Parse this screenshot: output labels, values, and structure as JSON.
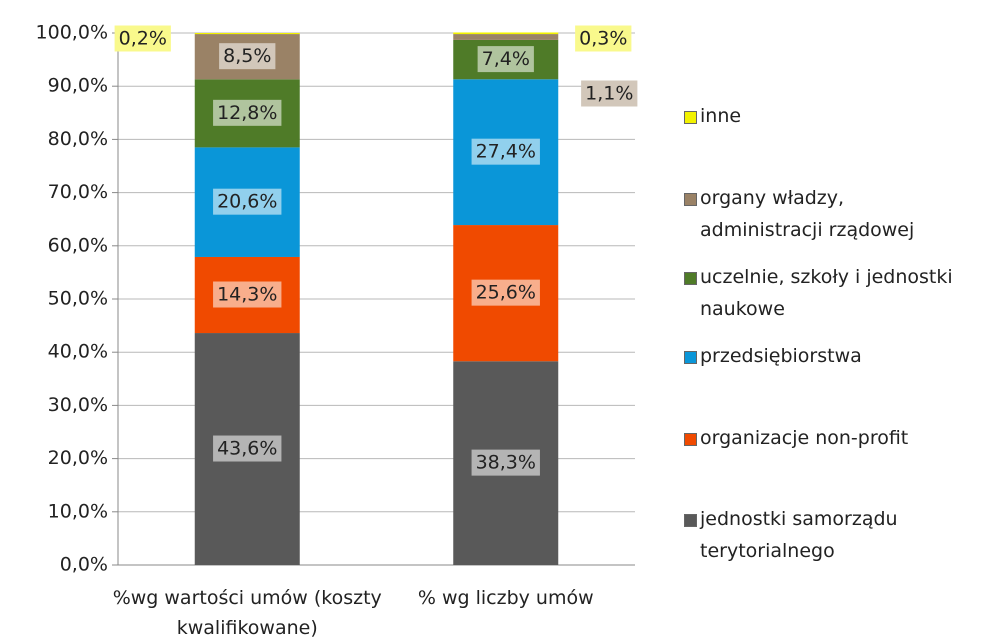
{
  "chart_data": {
    "type": "stacked_bar",
    "categories": [
      "%wg wartości umów (koszty kwalifikowane)",
      "% wg liczby umów"
    ],
    "series": [
      {
        "name": "jednostki samorządu terytorialnego",
        "color": "#595959",
        "values": [
          43.6,
          38.3
        ],
        "value_labels": [
          "43,6%",
          "38,3%"
        ]
      },
      {
        "name": "organizacje non-profit",
        "color": "#f04a00",
        "values": [
          14.3,
          25.6
        ],
        "value_labels": [
          "14,3%",
          "25,6%"
        ]
      },
      {
        "name": "przedsiębiorstwa",
        "color": "#0a96d8",
        "values": [
          20.6,
          27.4
        ],
        "value_labels": [
          "20,6%",
          "27,4%"
        ]
      },
      {
        "name": "uczelnie, szkoły i jednostki naukowe",
        "color": "#4f7b28",
        "values": [
          12.8,
          7.4
        ],
        "value_labels": [
          "12,8%",
          "7,4%"
        ]
      },
      {
        "name": "organy władzy, administracji rządowej",
        "color": "#9a8266",
        "values": [
          8.5,
          1.1
        ],
        "value_labels": [
          "8,5%",
          "1,1%"
        ]
      },
      {
        "name": "inne",
        "color": "#f2f200",
        "values": [
          0.2,
          0.3
        ],
        "value_labels": [
          "0,2%",
          "0,3%"
        ]
      }
    ],
    "ylim": [
      0,
      100
    ],
    "yticks": [
      {
        "value": 0,
        "label": "0,0%"
      },
      {
        "value": 10,
        "label": "10,0%"
      },
      {
        "value": 20,
        "label": "20,0%"
      },
      {
        "value": 30,
        "label": "30,0%"
      },
      {
        "value": 40,
        "label": "40,0%"
      },
      {
        "value": 50,
        "label": "50,0%"
      },
      {
        "value": 60,
        "label": "60,0%"
      },
      {
        "value": 70,
        "label": "70,0%"
      },
      {
        "value": 80,
        "label": "80,0%"
      },
      {
        "value": 90,
        "label": "90,0%"
      },
      {
        "value": 100,
        "label": "100,0%"
      }
    ],
    "grid": true,
    "legend": "right"
  }
}
